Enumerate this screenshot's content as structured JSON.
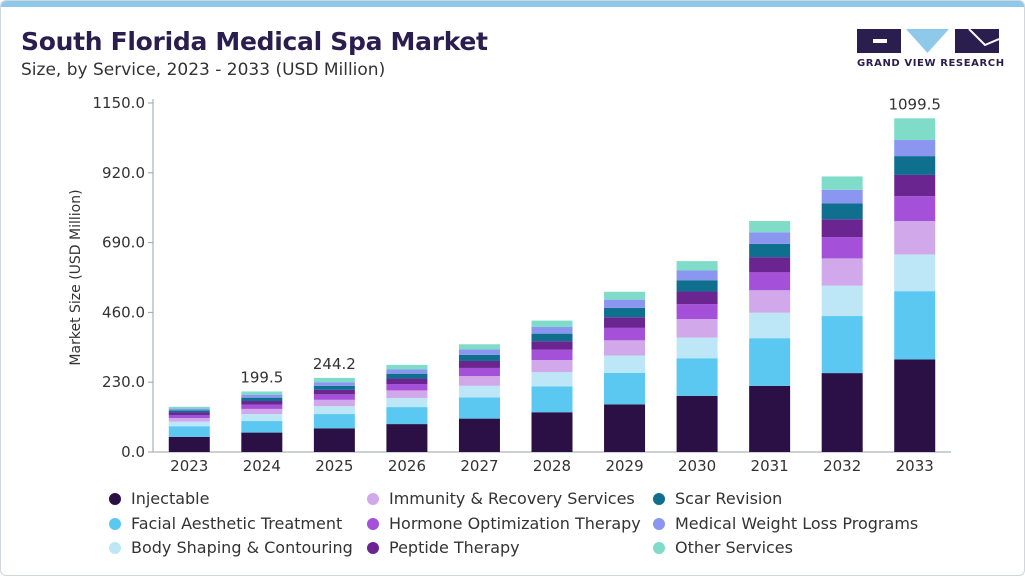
{
  "header": {
    "title": "South Florida Medical Spa Market",
    "subtitle": "Size, by Service, 2023 - 2033 (USD Million)"
  },
  "brand": {
    "name": "GRAND VIEW RESEARCH",
    "color": "#2a1e4e",
    "accent": "#8ec9ea"
  },
  "chart_data": {
    "type": "bar",
    "stacked": true,
    "title": "South Florida Medical Spa Market",
    "ylabel": "Market Size (USD Million)",
    "xlabel": "",
    "ylim": [
      0,
      1150
    ],
    "yticks": [
      "0.0",
      "230.0",
      "460.0",
      "690.0",
      "920.0",
      "1150.0"
    ],
    "ytick_values": [
      0,
      230,
      460,
      690,
      920,
      1150
    ],
    "grid": false,
    "categories": [
      "2023",
      "2024",
      "2025",
      "2026",
      "2027",
      "2028",
      "2029",
      "2030",
      "2031",
      "2032",
      "2033"
    ],
    "series": [
      {
        "name": "Injectable",
        "color": "#2b1046",
        "values": [
          50,
          64,
          78,
          92,
          110,
          131,
          157,
          185,
          218,
          260,
          305
        ]
      },
      {
        "name": "Facial Aesthetic Treatment",
        "color": "#5ac8f0",
        "values": [
          35,
          38,
          47,
          56,
          70,
          85,
          104,
          124,
          157,
          188,
          225
        ]
      },
      {
        "name": "Body Shaping & Contouring",
        "color": "#bde7f7",
        "values": [
          15,
          23,
          26,
          30,
          38,
          47,
          57,
          68,
          84,
          100,
          121
        ]
      },
      {
        "name": "Immunity & Recovery Services",
        "color": "#d1a9ea",
        "values": [
          12,
          17,
          21,
          25,
          32,
          40,
          50,
          61,
          74,
          90,
          110
        ]
      },
      {
        "name": "Hormone Optimization Therapy",
        "color": "#a450d8",
        "values": [
          10,
          14,
          18,
          21,
          27,
          34,
          41,
          49,
          59,
          70,
          82
        ]
      },
      {
        "name": "Peptide Therapy",
        "color": "#6a2590",
        "values": [
          8,
          12,
          15,
          18,
          23,
          28,
          35,
          42,
          50,
          59,
          70
        ]
      },
      {
        "name": "Scar Revision",
        "color": "#0f6f8f",
        "values": [
          7,
          11,
          13,
          16,
          20,
          25,
          31,
          37,
          44,
          52,
          62
        ]
      },
      {
        "name": "Medical Weight Loss Programs",
        "color": "#8a96f0",
        "values": [
          6,
          10,
          12,
          14,
          18,
          22,
          27,
          32,
          38,
          45,
          53
        ]
      },
      {
        "name": "Other Services",
        "color": "#7fdcc8",
        "values": [
          6,
          10.5,
          14.2,
          15,
          17,
          21,
          26,
          31,
          37,
          44,
          71.5
        ]
      }
    ],
    "annotations": [
      {
        "category": "2024",
        "text": "199.5"
      },
      {
        "category": "2025",
        "text": "244.2"
      },
      {
        "category": "2033",
        "text": "1099.5"
      }
    ],
    "legend_position": "bottom"
  }
}
